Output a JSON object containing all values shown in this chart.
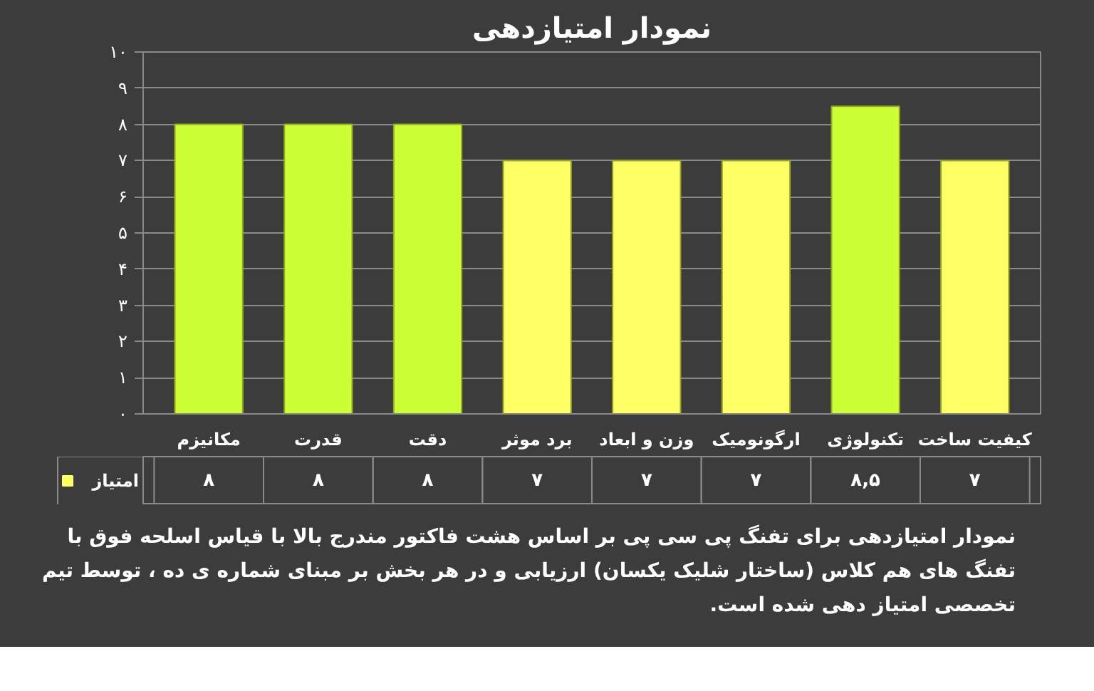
{
  "chart_data": {
    "type": "bar",
    "title": "نمودار امتیازدهی",
    "categories": [
      "مکانیزم",
      "قدرت",
      "دقت",
      "برد موثر",
      "وزن و ابعاد",
      "ارگونومیک",
      "تکنولوژی",
      "کیفیت ساخت"
    ],
    "series": [
      {
        "name": "امتیاز",
        "color": "#ffff66",
        "colors": [
          "#ccff33",
          "#ccff33",
          "#ccff33",
          "#ffff66",
          "#ffff66",
          "#ffff66",
          "#ccff33",
          "#ffff66"
        ],
        "values": [
          8,
          8,
          8,
          7,
          7,
          7,
          8.5,
          7
        ],
        "value_labels": [
          "۸",
          "۸",
          "۸",
          "۷",
          "۷",
          "۷",
          "۸,۵",
          "۷"
        ]
      }
    ],
    "ylim": [
      0,
      10
    ],
    "yticks": [
      {
        "value": 0,
        "label": "۰"
      },
      {
        "value": 1,
        "label": "۱"
      },
      {
        "value": 2,
        "label": "۲"
      },
      {
        "value": 3,
        "label": "۳"
      },
      {
        "value": 4,
        "label": "۴"
      },
      {
        "value": 5,
        "label": "۵"
      },
      {
        "value": 6,
        "label": "۶"
      },
      {
        "value": 7,
        "label": "۷"
      },
      {
        "value": 8,
        "label": "۸"
      },
      {
        "value": 9,
        "label": "۹"
      },
      {
        "value": 10,
        "label": "۱۰"
      }
    ],
    "grid": "y",
    "legend": "bottom left",
    "annotations": [
      "نمودار امتیازدهی برای تفنگ پی سی پی بر اساس هشت فاکتور مندرج بالا با قیاس اسلحه فوق با تفنگ های هم کلاس (ساختار شلیک یکسان) ارزیابی و در هر بخش بر مبنای شماره ی ده ، توسط تیم تخصصی امتیاز دهی شده است."
    ]
  }
}
